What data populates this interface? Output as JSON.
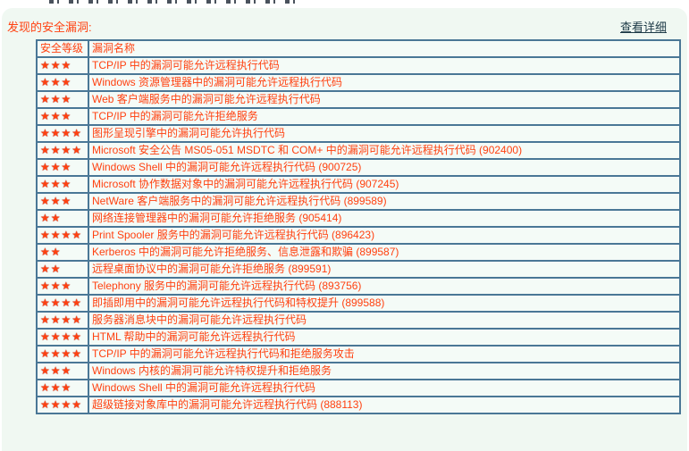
{
  "page": {
    "title": "发现的安全漏洞:",
    "view_details_link": "查看详细"
  },
  "colors": {
    "panel_background": "#f0f8f2",
    "table_border": "#4a7796",
    "cell_background": "#f4fbf7",
    "text_orange_red": "#ff4110",
    "star_red": "#d01010",
    "link_dark": "#1d3a47"
  },
  "table": {
    "columns": [
      "安全等级",
      "漏洞名称"
    ],
    "star_char": "★",
    "rows": [
      {
        "stars": 3,
        "name": "TCP/IP 中的漏洞可能允许远程执行代码"
      },
      {
        "stars": 3,
        "name": "Windows 资源管理器中的漏洞可能允许远程执行代码"
      },
      {
        "stars": 3,
        "name": "Web 客户端服务中的漏洞可能允许远程执行代码"
      },
      {
        "stars": 3,
        "name": "TCP/IP 中的漏洞可能允许拒绝服务"
      },
      {
        "stars": 4,
        "name": "图形呈现引擎中的漏洞可能允许执行代码"
      },
      {
        "stars": 4,
        "name": "Microsoft 安全公告 MS05-051 MSDTC 和 COM+ 中的漏洞可能允许远程执行代码 (902400)"
      },
      {
        "stars": 3,
        "name": "Windows Shell 中的漏洞可能允许远程执行代码 (900725)"
      },
      {
        "stars": 3,
        "name": "Microsoft 协作数据对象中的漏洞可能允许远程执行代码 (907245)"
      },
      {
        "stars": 3,
        "name": "NetWare 客户端服务中的漏洞可能允许远程执行代码 (899589)"
      },
      {
        "stars": 2,
        "name": "网络连接管理器中的漏洞可能允许拒绝服务 (905414)"
      },
      {
        "stars": 4,
        "name": "Print Spooler 服务中的漏洞可能允许远程执行代码 (896423)"
      },
      {
        "stars": 2,
        "name": "Kerberos 中的漏洞可能允许拒绝服务、信息泄露和欺骗 (899587)"
      },
      {
        "stars": 2,
        "name": "远程桌面协议中的漏洞可能允许拒绝服务 (899591)"
      },
      {
        "stars": 3,
        "name": "Telephony 服务中的漏洞可能允许远程执行代码 (893756)"
      },
      {
        "stars": 4,
        "name": "即插即用中的漏洞可能允许远程执行代码和特权提升 (899588)"
      },
      {
        "stars": 4,
        "name": "服务器消息块中的漏洞可能允许远程执行代码"
      },
      {
        "stars": 4,
        "name": "HTML 帮助中的漏洞可能允许远程执行代码"
      },
      {
        "stars": 4,
        "name": "TCP/IP 中的漏洞可能允许远程执行代码和拒绝服务攻击"
      },
      {
        "stars": 3,
        "name": "Windows 内核的漏洞可能允许特权提升和拒绝服务"
      },
      {
        "stars": 3,
        "name": "Windows Shell 中的漏洞可能允许远程执行代码"
      },
      {
        "stars": 4,
        "name": "超级链接对象库中的漏洞可能允许远程执行代码 (888113)"
      }
    ]
  }
}
